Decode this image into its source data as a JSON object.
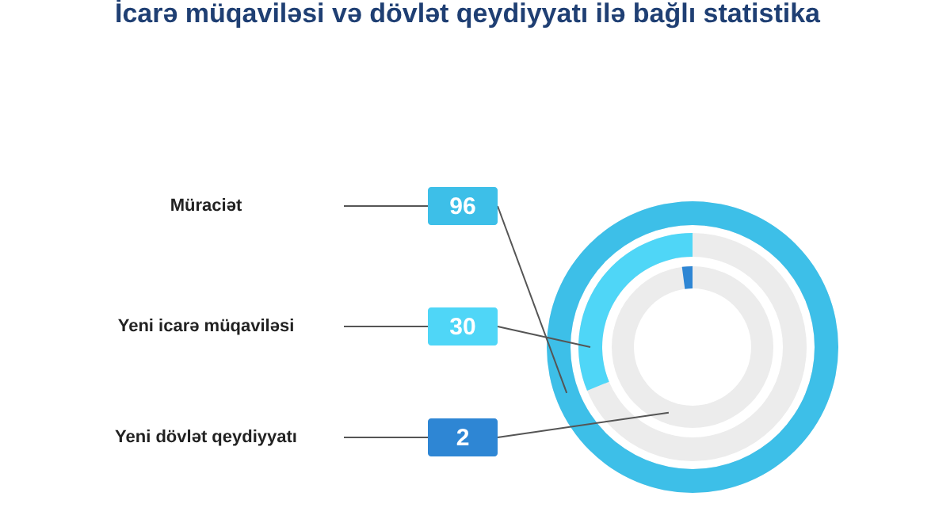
{
  "chart_data": {
    "type": "other",
    "title": "İcarə müqaviləsi və dövlət qeydiyyatı ilə bağlı statistika",
    "categories": [
      "Müraciət",
      "Yeni icarə müqaviləsi",
      "Yeni dövlət qeydiyyatı"
    ],
    "values": [
      96,
      30,
      2
    ],
    "colors": [
      "#3dbfe8",
      "#4fd6f7",
      "#2e86d4"
    ],
    "data_labels": true
  }
}
